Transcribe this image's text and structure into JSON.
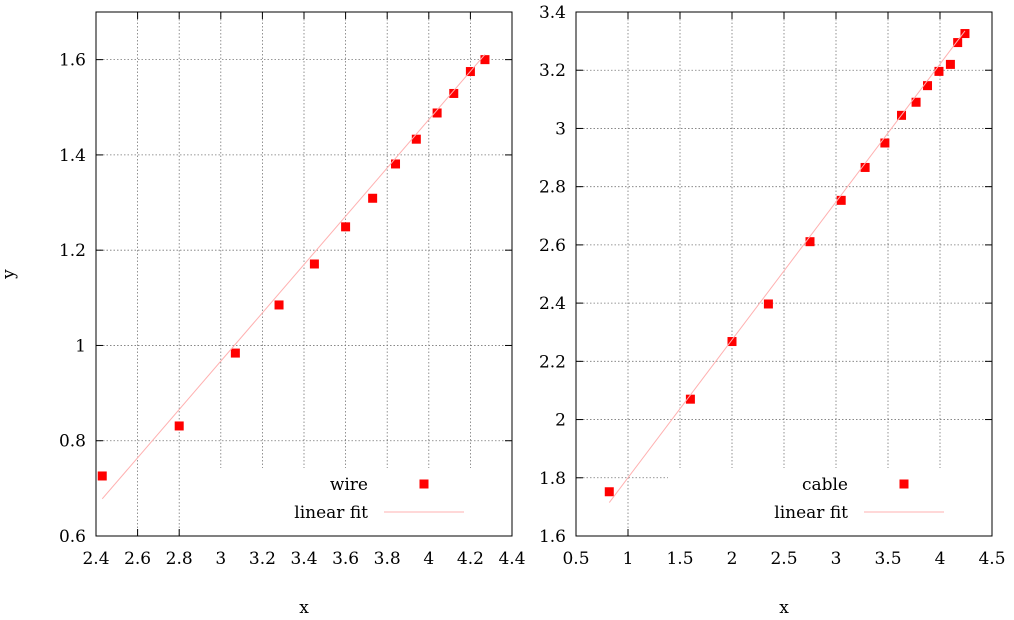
{
  "chart_data": [
    {
      "type": "scatter",
      "xlabel": "x",
      "ylabel": "y",
      "xlim": [
        2.4,
        4.4
      ],
      "ylim": [
        0.6,
        1.7
      ],
      "xticks": [
        "2.4",
        "2.6",
        "2.8",
        "3",
        "3.2",
        "3.4",
        "3.6",
        "3.8",
        "4",
        "4.2",
        "4.4"
      ],
      "yticks": [
        "0.6",
        "0.8",
        "1",
        "1.2",
        "1.4",
        "1.6"
      ],
      "grid": true,
      "legend_position": "bottom-right",
      "series": [
        {
          "name": "wire",
          "kind": "points",
          "color": "#ff0000",
          "marker": "square",
          "x": [
            2.43,
            2.8,
            3.07,
            3.28,
            3.45,
            3.6,
            3.73,
            3.84,
            3.94,
            4.04,
            4.12,
            4.2,
            4.27
          ],
          "y": [
            0.726,
            0.831,
            0.984,
            1.085,
            1.171,
            1.249,
            1.309,
            1.381,
            1.433,
            1.488,
            1.529,
            1.575,
            1.6
          ]
        },
        {
          "name": "linear fit",
          "kind": "line",
          "color": "#ffb0b0",
          "x": [
            2.43,
            4.27
          ],
          "y": [
            0.678,
            1.611
          ]
        }
      ]
    },
    {
      "type": "scatter",
      "xlabel": "x",
      "ylabel": "",
      "xlim": [
        0.5,
        4.5
      ],
      "ylim": [
        1.6,
        3.4
      ],
      "xticks": [
        "0.5",
        "1",
        "1.5",
        "2",
        "2.5",
        "3",
        "3.5",
        "4",
        "4.5"
      ],
      "yticks": [
        "1.6",
        "1.8",
        "2",
        "2.2",
        "2.4",
        "2.6",
        "2.8",
        "3",
        "3.2",
        "3.4"
      ],
      "grid": true,
      "legend_position": "bottom-right",
      "series": [
        {
          "name": "cable",
          "kind": "points",
          "color": "#ff0000",
          "marker": "square",
          "x": [
            0.82,
            1.6,
            2.0,
            2.35,
            2.75,
            3.05,
            3.28,
            3.47,
            3.63,
            3.77,
            3.88,
            3.99,
            4.1,
            4.17,
            4.24
          ],
          "y": [
            1.752,
            2.07,
            2.268,
            2.397,
            2.611,
            2.753,
            2.866,
            2.95,
            3.045,
            3.09,
            3.147,
            3.196,
            3.22,
            3.295,
            3.326
          ]
        },
        {
          "name": "linear fit",
          "kind": "line",
          "color": "#ffb0b0",
          "x": [
            0.82,
            4.24
          ],
          "y": [
            1.715,
            3.335
          ]
        }
      ]
    }
  ]
}
